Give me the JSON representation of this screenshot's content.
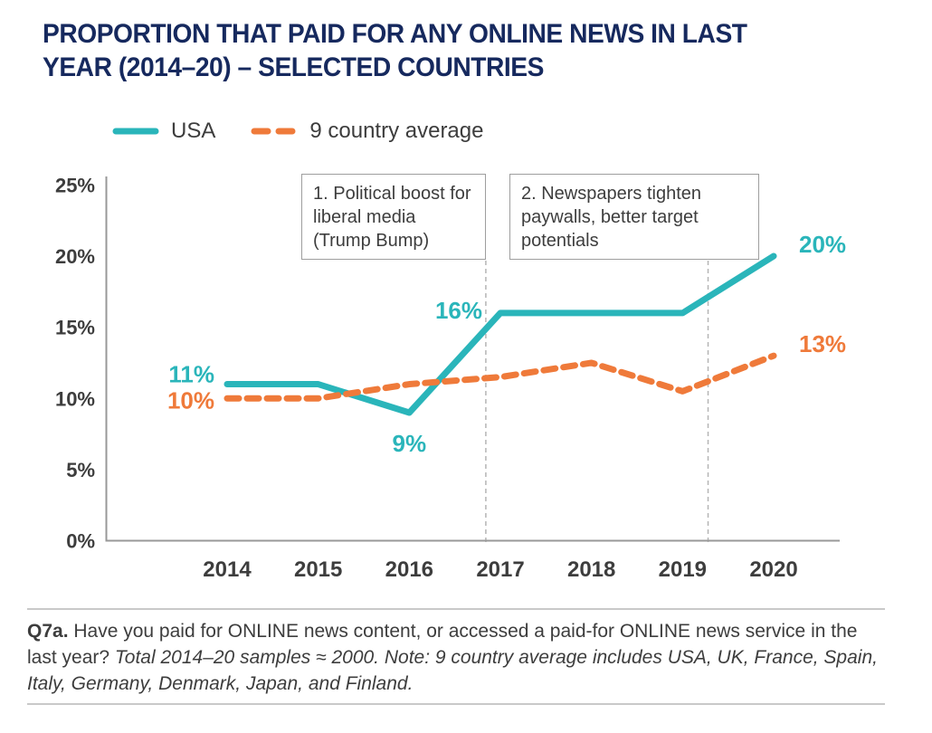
{
  "title": {
    "line1": "PROPORTION THAT PAID FOR ANY ONLINE NEWS IN LAST",
    "line2": "YEAR (2014–20) – SELECTED COUNTRIES",
    "color": "#16295e"
  },
  "legend": {
    "items": [
      {
        "label": "USA",
        "color": "#2ab5ba",
        "style": "solid"
      },
      {
        "label": "9 country average",
        "color": "#ef7a3a",
        "style": "dashed"
      }
    ]
  },
  "colors": {
    "usa": "#2ab5ba",
    "average": "#ef7a3a",
    "title": "#16295e",
    "text": "#3d3d3d",
    "axis": "#999999",
    "guide": "#b5b5b5",
    "annotation_border": "#9e9e9e",
    "divider": "#c9c9c9"
  },
  "chart_data": {
    "type": "line",
    "title": "Proportion that paid for any online news in last year (2014–20) – selected countries",
    "x": [
      2014,
      2015,
      2016,
      2017,
      2018,
      2019,
      2020
    ],
    "xtick_labels": [
      "2014",
      "2015",
      "2016",
      "2017",
      "2018",
      "2019",
      "2020"
    ],
    "series": [
      {
        "name": "USA",
        "values": [
          11,
          11,
          9,
          16,
          16,
          16,
          20
        ],
        "color": "#2ab5ba",
        "style": "solid"
      },
      {
        "name": "9 country average",
        "values": [
          10,
          10,
          11,
          11.5,
          12.5,
          10.5,
          13
        ],
        "color": "#ef7a3a",
        "style": "dashed"
      }
    ],
    "ylim": [
      0,
      25
    ],
    "yticks": [
      {
        "v": 25,
        "label": "25%"
      },
      {
        "v": 20,
        "label": "20%"
      },
      {
        "v": 15,
        "label": "15%"
      },
      {
        "v": 10,
        "label": "10%"
      },
      {
        "v": 5,
        "label": "5%"
      },
      {
        "v": 0,
        "label": "0%"
      }
    ],
    "grid": "off",
    "legend_position": "top-left",
    "point_labels": [
      {
        "series": 0,
        "year": 2014,
        "text": "11%",
        "placement": "left"
      },
      {
        "series": 1,
        "year": 2014,
        "text": "10%",
        "placement": "left-below"
      },
      {
        "series": 0,
        "year": 2016,
        "text": "9%",
        "placement": "below"
      },
      {
        "series": 0,
        "year": 2017,
        "text": "16%",
        "placement": "left-above"
      },
      {
        "series": 0,
        "year": 2020,
        "text": "20%",
        "placement": "right"
      },
      {
        "series": 1,
        "year": 2020,
        "text": "13%",
        "placement": "right"
      }
    ],
    "guides": [
      {
        "at_year": 2016.84
      },
      {
        "at_year": 2019.28
      }
    ],
    "annotations": [
      {
        "text": "1. Political boost for liberal media (Trump Bump)"
      },
      {
        "text": "2. Newspapers tighten paywalls, better target potentials"
      }
    ]
  },
  "footer": {
    "q_label": "Q7a.",
    "question": " Have you paid for ONLINE news content, or accessed a paid-for ONLINE news service in the last year? ",
    "note": "Total 2014–20 samples ≈ 2000.  Note: 9 country average includes USA, UK, France, Spain, Italy, Germany, Denmark, Japan, and Finland."
  }
}
